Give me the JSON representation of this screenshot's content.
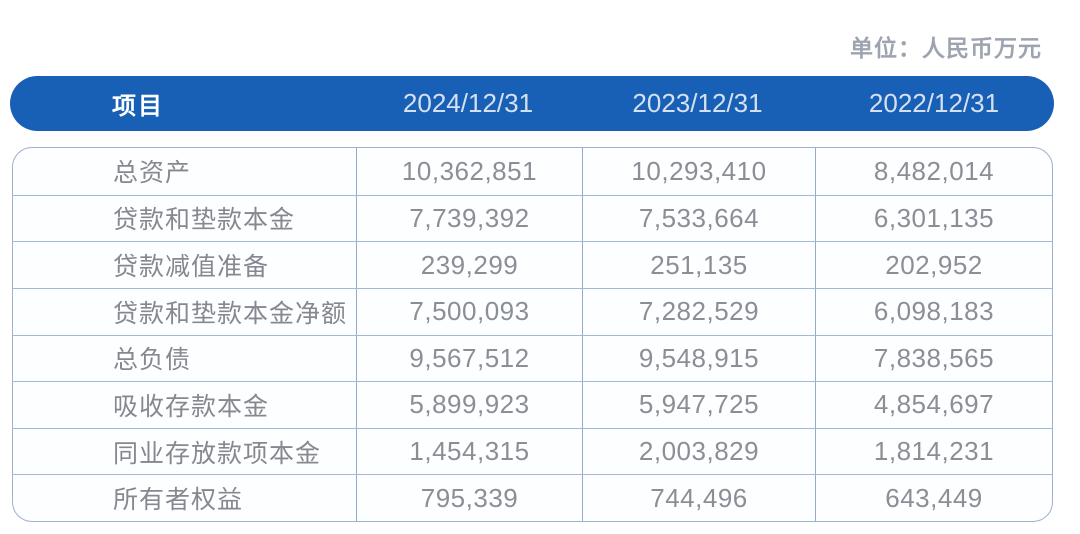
{
  "unit_label": "单位：人民币万元",
  "chart_data": {
    "type": "table",
    "unit": "单位：人民币万元",
    "columns": [
      "项目",
      "2024/12/31",
      "2023/12/31",
      "2022/12/31"
    ],
    "rows": [
      [
        "总资产",
        "10,362,851",
        "10,293,410",
        "8,482,014"
      ],
      [
        "贷款和垫款本金",
        "7,739,392",
        "7,533,664",
        "6,301,135"
      ],
      [
        "贷款减值准备",
        "239,299",
        "251,135",
        "202,952"
      ],
      [
        "贷款和垫款本金净额",
        "7,500,093",
        "7,282,529",
        "6,098,183"
      ],
      [
        "总负债",
        "9,567,512",
        "9,548,915",
        "7,838,565"
      ],
      [
        "吸收存款本金",
        "5,899,923",
        "5,947,725",
        "4,854,697"
      ],
      [
        "同业存放款项本金",
        "1,454,315",
        "2,003,829",
        "1,814,231"
      ],
      [
        "所有者权益",
        "795,339",
        "744,496",
        "643,449"
      ]
    ]
  },
  "colors": {
    "header_bg": "#1760B6",
    "header_text": "#FFFFFF",
    "header_date_text": "#D5E1F1",
    "grid_line": "#9DB2CE",
    "body_text": "#8A8F96",
    "unit_text": "#9DA4B0"
  }
}
